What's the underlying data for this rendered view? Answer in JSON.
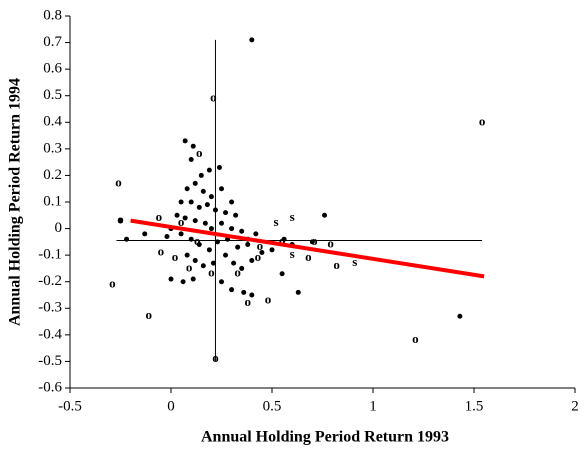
{
  "chart_data": {
    "type": "scatter",
    "xlabel": "Annual Holding Period Return 1993",
    "ylabel": "Annual Holding Period Return 1994",
    "xlim": [
      -0.5,
      2
    ],
    "ylim": [
      -0.6,
      0.8
    ],
    "xticks": [
      -0.5,
      0,
      0.5,
      1,
      1.5,
      2
    ],
    "yticks": [
      0.8,
      0.7,
      0.6,
      0.5,
      0.4,
      0.3,
      0.2,
      0.1,
      0,
      -0.1,
      -0.2,
      -0.3,
      -0.4,
      -0.5,
      -0.6
    ],
    "series": [
      {
        "marker": "dot",
        "color": "#000000",
        "x": [
          0.4,
          0.07,
          0.11,
          0.1,
          0.15,
          0.19,
          0.24,
          0.08,
          0.12,
          0.16,
          0.2,
          0.05,
          0.1,
          0.14,
          0.18,
          0.22,
          0.27,
          0.3,
          0.32,
          0.25,
          0.03,
          0.07,
          0.12,
          0.17,
          0.2,
          0.25,
          0.3,
          0.35,
          0.0,
          -0.02,
          0.05,
          0.1,
          0.14,
          0.19,
          0.23,
          0.28,
          0.33,
          0.38,
          0.42,
          0.08,
          0.12,
          0.16,
          0.21,
          0.27,
          0.31,
          0.35,
          0.4,
          0.45,
          0.06,
          0.11,
          0.25,
          0.3,
          0.36,
          0.4,
          -0.13,
          -0.22,
          -0.25,
          0.56,
          0.6,
          0.7,
          0.76,
          0.63,
          0.55,
          0.5,
          1.43,
          0.0,
          0.38
        ],
        "y": [
          0.71,
          0.33,
          0.31,
          0.26,
          0.2,
          0.22,
          0.23,
          0.15,
          0.17,
          0.14,
          0.12,
          0.1,
          0.1,
          0.08,
          0.09,
          0.07,
          0.06,
          0.1,
          0.05,
          0.15,
          0.05,
          0.04,
          0.03,
          0.02,
          0.0,
          0.02,
          0.0,
          -0.01,
          0.0,
          -0.03,
          -0.02,
          -0.04,
          -0.06,
          -0.08,
          -0.05,
          -0.04,
          -0.07,
          -0.04,
          -0.02,
          -0.1,
          -0.12,
          -0.14,
          -0.13,
          -0.1,
          -0.13,
          -0.15,
          -0.12,
          -0.09,
          -0.2,
          -0.19,
          -0.2,
          -0.23,
          -0.24,
          -0.25,
          -0.02,
          -0.04,
          0.03,
          -0.04,
          -0.06,
          -0.05,
          0.05,
          -0.24,
          -0.17,
          -0.08,
          -0.33,
          -0.19,
          -0.06
        ]
      },
      {
        "marker": "o",
        "color": "#000000",
        "x": [
          0.21,
          1.54,
          0.14,
          -0.26,
          -0.25,
          -0.06,
          -0.29,
          -0.11,
          0.22,
          1.21,
          0.38,
          0.48,
          0.68,
          0.71,
          0.79,
          0.82,
          -0.05,
          0.02,
          0.09,
          0.2,
          0.13,
          0.44,
          0.43,
          0.55,
          0.33,
          0.05
        ],
        "y": [
          0.49,
          0.4,
          0.28,
          0.17,
          0.03,
          0.04,
          -0.21,
          -0.33,
          -0.49,
          -0.42,
          -0.28,
          -0.27,
          -0.11,
          -0.05,
          -0.06,
          -0.14,
          -0.09,
          -0.11,
          -0.15,
          -0.17,
          -0.05,
          -0.07,
          -0.11,
          -0.05,
          -0.17,
          0.02
        ]
      },
      {
        "marker": "s",
        "color": "#000000",
        "x": [
          0.52,
          0.6,
          0.6,
          0.91
        ],
        "y": [
          0.02,
          0.04,
          -0.1,
          -0.13
        ]
      }
    ],
    "vline": {
      "x": 0.22,
      "y": [
        -0.5,
        0.71
      ]
    },
    "hline": {
      "y": -0.045,
      "x": [
        -0.27,
        1.54
      ]
    },
    "fit": {
      "x": [
        -0.2,
        1.55
      ],
      "y": [
        0.03,
        -0.18
      ],
      "color": "#ff0000"
    }
  }
}
